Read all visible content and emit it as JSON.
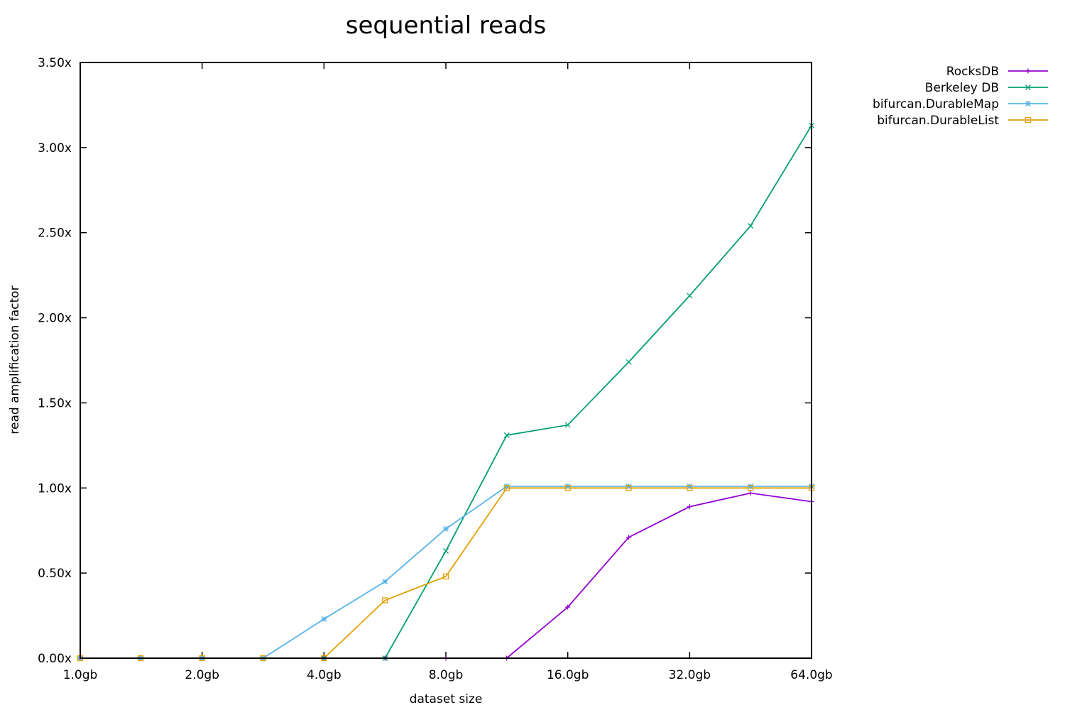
{
  "chart_data": {
    "type": "line",
    "title": "sequential reads",
    "xlabel": "dataset size",
    "ylabel": "read amplification factor",
    "x_scale": "log2",
    "x": [
      "1.0gb",
      "1.4gb",
      "2.0gb",
      "2.8gb",
      "4.0gb",
      "5.7gb",
      "8.0gb",
      "11.3gb",
      "16.0gb",
      "22.6gb",
      "32.0gb",
      "45.3gb",
      "64.0gb"
    ],
    "x_values_gb": [
      1.0,
      1.41,
      2.0,
      2.83,
      4.0,
      5.66,
      8.0,
      11.31,
      16.0,
      22.63,
      32.0,
      45.25,
      64.0
    ],
    "x_ticks": [
      "1.0gb",
      "2.0gb",
      "4.0gb",
      "8.0gb",
      "16.0gb",
      "32.0gb",
      "64.0gb"
    ],
    "x_tick_values_gb": [
      1,
      2,
      4,
      8,
      16,
      32,
      64
    ],
    "xlim_gb": [
      1,
      64
    ],
    "y_ticks": [
      "0.00x",
      "0.50x",
      "1.00x",
      "1.50x",
      "2.00x",
      "2.50x",
      "3.00x",
      "3.50x"
    ],
    "y_tick_values": [
      0,
      0.5,
      1.0,
      1.5,
      2.0,
      2.5,
      3.0,
      3.5
    ],
    "ylim": [
      0,
      3.5
    ],
    "grid": false,
    "legend_position": "top-right, outside plot",
    "series": [
      {
        "name": "RocksDB",
        "color": "#9400d3",
        "marker": "plus",
        "values": [
          0,
          0,
          0,
          0,
          0,
          0,
          0,
          0,
          0.3,
          0.71,
          0.89,
          0.97,
          0.92
        ]
      },
      {
        "name": "Berkeley DB",
        "color": "#009e73",
        "marker": "cross",
        "values": [
          0,
          0,
          0,
          0,
          0,
          0,
          0.63,
          1.31,
          1.37,
          1.74,
          2.13,
          2.54,
          3.13
        ]
      },
      {
        "name": "bifurcan.DurableMap",
        "color": "#56b4e9",
        "marker": "star",
        "values": [
          0,
          0,
          0,
          0,
          0.23,
          0.45,
          0.76,
          1.01,
          1.01,
          1.01,
          1.01,
          1.01,
          1.01
        ]
      },
      {
        "name": "bifurcan.DurableList",
        "color": "#e69f00",
        "marker": "square",
        "values": [
          0,
          0,
          0,
          0,
          0,
          0.34,
          0.48,
          1.0,
          1.0,
          1.0,
          1.0,
          1.0,
          1.0
        ]
      }
    ]
  }
}
